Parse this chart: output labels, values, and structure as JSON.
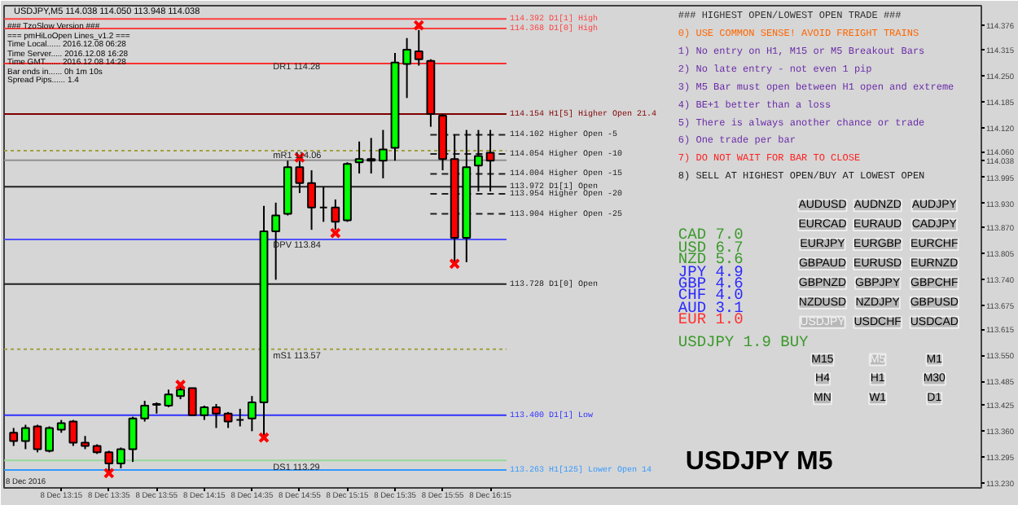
{
  "chart_data": {
    "type": "candlestick",
    "title": "USDJPY,M5  114.038 114.050 113.948 114.038",
    "x": [
      "2016-12-08T12:55",
      "2016-12-08T13:00",
      "2016-12-08T13:05",
      "2016-12-08T13:10",
      "2016-12-08T13:15",
      "2016-12-08T13:20",
      "2016-12-08T13:25",
      "2016-12-08T13:30",
      "2016-12-08T13:35",
      "2016-12-08T13:40",
      "2016-12-08T13:45",
      "2016-12-08T13:50",
      "2016-12-08T13:55",
      "2016-12-08T14:00",
      "2016-12-08T14:05",
      "2016-12-08T14:10",
      "2016-12-08T14:15",
      "2016-12-08T14:20",
      "2016-12-08T14:25",
      "2016-12-08T14:30",
      "2016-12-08T14:35",
      "2016-12-08T14:40",
      "2016-12-08T14:45",
      "2016-12-08T14:50",
      "2016-12-08T14:55",
      "2016-12-08T15:00",
      "2016-12-08T15:05",
      "2016-12-08T15:10",
      "2016-12-08T15:15",
      "2016-12-08T15:20",
      "2016-12-08T15:25",
      "2016-12-08T15:30",
      "2016-12-08T15:35",
      "2016-12-08T15:40",
      "2016-12-08T15:45",
      "2016-12-08T15:50",
      "2016-12-08T15:55",
      "2016-12-08T16:00",
      "2016-12-08T16:05",
      "2016-12-08T16:10",
      "2016-12-08T16:15"
    ],
    "ohlc": [
      [
        113.356,
        113.368,
        113.323,
        113.335
      ],
      [
        113.335,
        113.376,
        113.315,
        113.368
      ],
      [
        113.372,
        113.376,
        113.307,
        113.315
      ],
      [
        113.311,
        113.372,
        113.307,
        113.368
      ],
      [
        113.364,
        113.388,
        113.356,
        113.38
      ],
      [
        113.384,
        113.388,
        113.323,
        113.331
      ],
      [
        113.331,
        113.348,
        113.315,
        113.323
      ],
      [
        113.323,
        113.327,
        113.303,
        113.307
      ],
      [
        113.307,
        113.311,
        113.259,
        113.279
      ],
      [
        113.279,
        113.319,
        113.267,
        113.315
      ],
      [
        113.315,
        113.396,
        113.283,
        113.392
      ],
      [
        113.392,
        113.436,
        113.384,
        113.424
      ],
      [
        113.426,
        113.432,
        113.404,
        113.428
      ],
      [
        113.424,
        113.464,
        113.42,
        113.452
      ],
      [
        113.448,
        113.472,
        113.44,
        113.464
      ],
      [
        113.468,
        113.468,
        113.4,
        113.4
      ],
      [
        113.4,
        113.424,
        113.388,
        113.42
      ],
      [
        113.42,
        113.428,
        113.368,
        113.404
      ],
      [
        113.404,
        113.408,
        113.368,
        113.384
      ],
      [
        113.388,
        113.416,
        113.372,
        113.388
      ],
      [
        113.392,
        113.448,
        113.36,
        113.432
      ],
      [
        113.432,
        113.924,
        113.348,
        113.86
      ],
      [
        113.86,
        113.932,
        113.739,
        113.9
      ],
      [
        113.904,
        114.037,
        113.9,
        114.021
      ],
      [
        114.021,
        114.037,
        113.956,
        113.981
      ],
      [
        113.981,
        114.013,
        113.864,
        113.92
      ],
      [
        113.92,
        113.972,
        113.884,
        113.92
      ],
      [
        113.92,
        113.94,
        113.864,
        113.884
      ],
      [
        113.888,
        114.033,
        113.884,
        114.029
      ],
      [
        114.033,
        114.085,
        114.005,
        114.041
      ],
      [
        114.041,
        114.094,
        114.005,
        114.037
      ],
      [
        114.037,
        114.114,
        113.993,
        114.065
      ],
      [
        114.069,
        114.307,
        114.037,
        114.283
      ],
      [
        114.279,
        114.344,
        114.194,
        114.315
      ],
      [
        114.311,
        114.364,
        114.275,
        114.291
      ],
      [
        114.287,
        114.291,
        114.122,
        114.154
      ],
      [
        114.15,
        114.154,
        114.013,
        114.041
      ],
      [
        114.041,
        114.102,
        113.783,
        113.844
      ],
      [
        113.844,
        114.114,
        113.783,
        114.021
      ],
      [
        114.025,
        114.114,
        113.96,
        114.049
      ],
      [
        114.057,
        114.114,
        113.96,
        114.037
      ]
    ],
    "colors": [
      "#ff0000",
      "#00ff00",
      "#ff0000",
      "#00ff00",
      "#00ff00",
      "#ff0000",
      "#ff0000",
      "#ff0000",
      "#ff0000",
      "#00ff00",
      "#00ff00",
      "#00ff00",
      "#00ff00",
      "#00ff00",
      "#00ff00",
      "#ff0000",
      "#00ff00",
      "#ff0000",
      "#ff0000",
      "#000000",
      "#00ff00",
      "#00ff00",
      "#00ff00",
      "#00ff00",
      "#ff0000",
      "#ff0000",
      "#000000",
      "#ff0000",
      "#00ff00",
      "#00ff00",
      "#ff0000",
      "#00ff00",
      "#00ff00",
      "#00ff00",
      "#ff0000",
      "#ff0000",
      "#ff0000",
      "#ff0000",
      "#00ff00",
      "#00ff00",
      "#ff0000"
    ],
    "series": [
      {
        "type": "scatter",
        "color": "#ff0000",
        "x": [
          "2016-12-08T13:35",
          "2016-12-08T14:05",
          "2016-12-08T14:40",
          "2016-12-08T14:55",
          "2016-12-08T15:10",
          "2016-12-08T15:45",
          "2016-12-08T16:00"
        ],
        "values": [
          113.255,
          113.476,
          113.344,
          114.045,
          113.856,
          114.376,
          113.779
        ]
      }
    ],
    "marker": "cross",
    "xlim": [
      "2016-12-08T12:51",
      "2016-12-08T19:41"
    ],
    "xticks": [
      {
        "value": "2016-12-08T13:15",
        "label": "8 Dec 13:15"
      },
      {
        "value": "2016-12-08T13:35",
        "label": "8 Dec 13:35"
      },
      {
        "value": "2016-12-08T13:55",
        "label": "8 Dec 13:55"
      },
      {
        "value": "2016-12-08T14:15",
        "label": "8 Dec 14:15"
      },
      {
        "value": "2016-12-08T14:35",
        "label": "8 Dec 14:35"
      },
      {
        "value": "2016-12-08T14:55",
        "label": "8 Dec 14:55"
      },
      {
        "value": "2016-12-08T15:15",
        "label": "8 Dec 15:15"
      },
      {
        "value": "2016-12-08T15:35",
        "label": "8 Dec 15:35"
      },
      {
        "value": "2016-12-08T15:55",
        "label": "8 Dec 15:55"
      },
      {
        "value": "2016-12-08T16:15",
        "label": "8 Dec 16:15"
      }
    ],
    "ylim": [
      113.218,
      114.425
    ],
    "yticks": [
      114.376,
      114.315,
      {
        "value": 114.25,
        "label": "114.250"
      },
      114.185,
      {
        "value": 114.12,
        "label": "114.120"
      },
      {
        "value": 114.06,
        "label": "114.060"
      },
      114.038,
      113.995,
      {
        "value": 113.93,
        "label": "113.930"
      },
      {
        "value": 113.87,
        "label": "113.870"
      },
      113.805,
      {
        "value": 113.74,
        "label": "113.740"
      },
      113.675,
      113.615,
      {
        "value": 113.55,
        "label": "113.550"
      },
      113.485,
      113.425,
      {
        "value": 113.36,
        "label": "113.360"
      },
      113.295,
      {
        "value": 113.23,
        "label": "113.230"
      }
    ],
    "ref_lines": [
      {
        "axis": "y",
        "value": 114.392,
        "label": "114.392  D1[1] High",
        "color": "#ff4040"
      },
      {
        "axis": "y",
        "value": 114.368,
        "label": "114.368  D1[0] High",
        "color": "#ff4040"
      },
      {
        "axis": "y",
        "value": 114.28,
        "color": "#ff3030"
      },
      {
        "axis": "y",
        "value": 114.154,
        "label": "114.154  H1[5] Higher Open 21.4",
        "color": "#800000"
      },
      {
        "axis": "y",
        "value": 114.102,
        "label": "114.102  Higher Open -5",
        "color": "#202020",
        "line_style": "dashed"
      },
      {
        "axis": "y",
        "value": 114.062,
        "color": "#a0a040",
        "line_style": "dotted"
      },
      {
        "axis": "y",
        "value": 114.054,
        "label": "114.054  Higher Open -10",
        "color": "#202020",
        "line_style": "dashed"
      },
      {
        "axis": "y",
        "value": 114.038,
        "color": "#909090"
      },
      {
        "axis": "y",
        "value": 114.004,
        "label": "114.004  Higher Open -15",
        "color": "#202020",
        "line_style": "dashed"
      },
      {
        "axis": "y",
        "value": 113.972,
        "label": "113.972  D1[1] Open",
        "color": "#202020"
      },
      {
        "axis": "y",
        "value": 113.954,
        "label": "113.954  Higher Open -20",
        "color": "#202020",
        "line_style": "dashed"
      },
      {
        "axis": "y",
        "value": 113.904,
        "label": "113.904  Higher Open -25",
        "color": "#202020",
        "line_style": "dashed"
      },
      {
        "axis": "y",
        "value": 113.84,
        "color": "#5050ff"
      },
      {
        "axis": "y",
        "value": 113.728,
        "label": "113.728  D1[0] Open",
        "color": "#202020"
      },
      {
        "axis": "y",
        "value": 113.565,
        "color": "#a0a040",
        "line_style": "dotted"
      },
      {
        "axis": "y",
        "value": 113.4,
        "label": "113.400  D1[1] Low",
        "color": "#3030ff"
      },
      {
        "axis": "y",
        "value": 113.287,
        "color": "#98d898"
      },
      {
        "axis": "y",
        "value": 113.263,
        "label": "113.263  H1[125] Lower Open 14",
        "color": "#3399ff"
      }
    ],
    "annotations": [
      "### TzoSlow Version ###",
      "=== pmHiLoOpen Lines_v1.2 ===",
      "Time Local...... 2016.12.08 06:28",
      "Time Server..... 2016.12.08 16:28",
      "Time GMT....... 2016.12.08 14:28",
      "Bar ends in...... 0h 1m 10s",
      "Spread Pips...... 1.4",
      "### HIGHEST OPEN/LOWEST OPEN TRADE ###",
      "0) USE COMMON SENSE!  AVOID FREIGHT TRAINS",
      "1) No entry on H1, M15 or M5 Breakout Bars",
      "2) No late entry - not even 1 pip",
      "3) M5 Bar must open between H1 open and extreme",
      "4) BE+1 better than a loss",
      "5) There is always another chance or trade",
      "6) One trade per bar",
      "7) DO NOT WAIT FOR BAR TO CLOSE",
      "8) SELL AT HIGHEST OPEN/BUY AT LOWEST OPEN",
      "CAD     7.0",
      "USD     6.7",
      "NZD     5.6",
      "JPY     4.9",
      "GBP     4.6",
      "CHF     4.0",
      "AUD     3.1",
      "EUR     1.0",
      "USDJPY 1.9 BUY",
      "AUDUSD",
      "AUDNZD",
      "AUDJPY",
      "EURCAD",
      "EURAUD",
      "CADJPY",
      "EURJPY",
      "EURGBP",
      "EURCHF",
      "GBPAUD",
      "EURUSD",
      "EURNZD",
      "GBPNZD",
      "GBPJPY",
      "GBPCHF",
      "NZDUSD",
      "NZDJPY",
      "GBPUSD",
      "USDJPY",
      "USDCHF",
      "USDCAD",
      "M15",
      "M5",
      "M1",
      "H4",
      "H1",
      "M30",
      "MN",
      "W1",
      "D1",
      "USDJPY M5",
      "DR1   114.28",
      "mR1   114.06",
      "DPV   113.84",
      "mS1   113.57",
      "DS1   113.29",
      "8 Dec 2016"
    ]
  }
}
